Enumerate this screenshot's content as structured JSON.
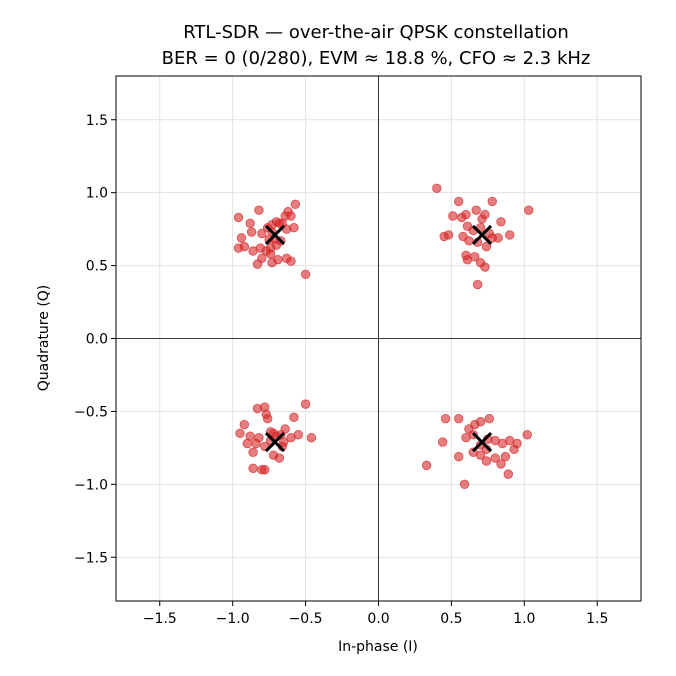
{
  "chart_data": {
    "type": "scatter",
    "title": "RTL-SDR — over-the-air QPSK constellation",
    "subtitle": "BER = 0  (0/280),  EVM ≈ 18.8 %,  CFO ≈ 2.3 kHz",
    "xlabel": "In-phase (I)",
    "ylabel": "Quadrature (Q)",
    "xlim": [
      -1.8,
      1.8
    ],
    "ylim": [
      -1.8,
      1.8
    ],
    "xticks": [
      -1.5,
      -1.0,
      -0.5,
      0.0,
      0.5,
      1.0,
      1.5
    ],
    "yticks": [
      -1.5,
      -1.0,
      -0.5,
      0.0,
      0.5,
      1.0,
      1.5
    ],
    "xtick_labels": [
      "−1.5",
      "−1.0",
      "−0.5",
      "0.0",
      "0.5",
      "1.0",
      "1.5"
    ],
    "ytick_labels": [
      "−1.5",
      "−1.0",
      "−0.5",
      "0.0",
      "0.5",
      "1.0",
      "1.5"
    ],
    "grid": true,
    "zero_lines": true,
    "colors": {
      "points": "#d62728",
      "ideal": "#000000"
    },
    "series": [
      {
        "marker": "circle",
        "points": [
          [
            -0.96,
            0.83
          ],
          [
            -0.88,
            0.79
          ],
          [
            -0.82,
            0.88
          ],
          [
            -0.76,
            0.76
          ],
          [
            -0.73,
            0.78
          ],
          [
            -0.7,
            0.8
          ],
          [
            -0.68,
            0.79
          ],
          [
            -0.66,
            0.79
          ],
          [
            -0.64,
            0.84
          ],
          [
            -0.62,
            0.87
          ],
          [
            -0.57,
            0.92
          ],
          [
            -0.6,
            0.84
          ],
          [
            -0.58,
            0.76
          ],
          [
            -0.63,
            0.75
          ],
          [
            -0.73,
            0.73
          ],
          [
            -0.8,
            0.72
          ],
          [
            -0.87,
            0.73
          ],
          [
            -0.94,
            0.69
          ],
          [
            -0.92,
            0.63
          ],
          [
            -0.86,
            0.6
          ],
          [
            -0.81,
            0.62
          ],
          [
            -0.77,
            0.6
          ],
          [
            -0.74,
            0.58
          ],
          [
            -0.7,
            0.64
          ],
          [
            -0.67,
            0.67
          ],
          [
            -0.71,
            0.68
          ],
          [
            -0.75,
            0.68
          ],
          [
            -0.8,
            0.55
          ],
          [
            -0.83,
            0.51
          ],
          [
            -0.73,
            0.52
          ],
          [
            -0.69,
            0.54
          ],
          [
            -0.63,
            0.55
          ],
          [
            -0.6,
            0.53
          ],
          [
            -0.5,
            0.44
          ],
          [
            -0.96,
            0.62
          ],
          [
            -0.74,
            0.62
          ],
          [
            0.4,
            1.03
          ],
          [
            0.55,
            0.94
          ],
          [
            0.51,
            0.84
          ],
          [
            0.57,
            0.83
          ],
          [
            0.6,
            0.85
          ],
          [
            0.67,
            0.88
          ],
          [
            0.71,
            0.82
          ],
          [
            0.73,
            0.85
          ],
          [
            0.78,
            0.94
          ],
          [
            0.84,
            0.8
          ],
          [
            0.9,
            0.71
          ],
          [
            1.03,
            0.88
          ],
          [
            0.61,
            0.77
          ],
          [
            0.65,
            0.74
          ],
          [
            0.7,
            0.76
          ],
          [
            0.76,
            0.72
          ],
          [
            0.78,
            0.69
          ],
          [
            0.74,
            0.63
          ],
          [
            0.68,
            0.66
          ],
          [
            0.62,
            0.67
          ],
          [
            0.58,
            0.7
          ],
          [
            0.45,
            0.7
          ],
          [
            0.48,
            0.71
          ],
          [
            0.6,
            0.57
          ],
          [
            0.61,
            0.54
          ],
          [
            0.66,
            0.56
          ],
          [
            0.7,
            0.52
          ],
          [
            0.73,
            0.49
          ],
          [
            0.68,
            0.37
          ],
          [
            0.82,
            0.69
          ],
          [
            -0.95,
            -0.65
          ],
          [
            -0.92,
            -0.59
          ],
          [
            -0.88,
            -0.67
          ],
          [
            -0.83,
            -0.48
          ],
          [
            -0.78,
            -0.47
          ],
          [
            -0.77,
            -0.52
          ],
          [
            -0.76,
            -0.55
          ],
          [
            -0.74,
            -0.64
          ],
          [
            -0.72,
            -0.65
          ],
          [
            -0.7,
            -0.67
          ],
          [
            -0.67,
            -0.66
          ],
          [
            -0.64,
            -0.62
          ],
          [
            -0.6,
            -0.68
          ],
          [
            -0.55,
            -0.66
          ],
          [
            -0.5,
            -0.45
          ],
          [
            -0.46,
            -0.68
          ],
          [
            -0.58,
            -0.54
          ],
          [
            -0.65,
            -0.71
          ],
          [
            -0.72,
            -0.8
          ],
          [
            -0.78,
            -0.74
          ],
          [
            -0.84,
            -0.72
          ],
          [
            -0.86,
            -0.78
          ],
          [
            -0.86,
            -0.89
          ],
          [
            -0.8,
            -0.9
          ],
          [
            -0.78,
            -0.9
          ],
          [
            -0.68,
            -0.82
          ],
          [
            -0.9,
            -0.72
          ],
          [
            -0.74,
            -0.7
          ],
          [
            -0.82,
            -0.68
          ],
          [
            -0.66,
            -0.74
          ],
          [
            0.33,
            -0.87
          ],
          [
            0.44,
            -0.71
          ],
          [
            0.46,
            -0.55
          ],
          [
            0.55,
            -0.55
          ],
          [
            0.62,
            -0.62
          ],
          [
            0.66,
            -0.59
          ],
          [
            0.7,
            -0.57
          ],
          [
            0.76,
            -0.55
          ],
          [
            0.65,
            -0.66
          ],
          [
            0.7,
            -0.73
          ],
          [
            0.75,
            -0.69
          ],
          [
            0.8,
            -0.7
          ],
          [
            0.85,
            -0.72
          ],
          [
            0.9,
            -0.7
          ],
          [
            0.93,
            -0.76
          ],
          [
            1.02,
            -0.66
          ],
          [
            0.55,
            -0.81
          ],
          [
            0.6,
            -0.68
          ],
          [
            0.65,
            -0.78
          ],
          [
            0.7,
            -0.8
          ],
          [
            0.74,
            -0.84
          ],
          [
            0.8,
            -0.82
          ],
          [
            0.87,
            -0.81
          ],
          [
            0.89,
            -0.93
          ],
          [
            0.59,
            -1.0
          ],
          [
            0.74,
            -0.76
          ],
          [
            0.84,
            -0.86
          ],
          [
            0.95,
            -0.72
          ]
        ]
      },
      {
        "marker": "x",
        "points": [
          [
            -0.71,
            0.71
          ],
          [
            0.71,
            0.71
          ],
          [
            -0.71,
            -0.71
          ],
          [
            0.71,
            -0.71
          ]
        ]
      }
    ]
  }
}
